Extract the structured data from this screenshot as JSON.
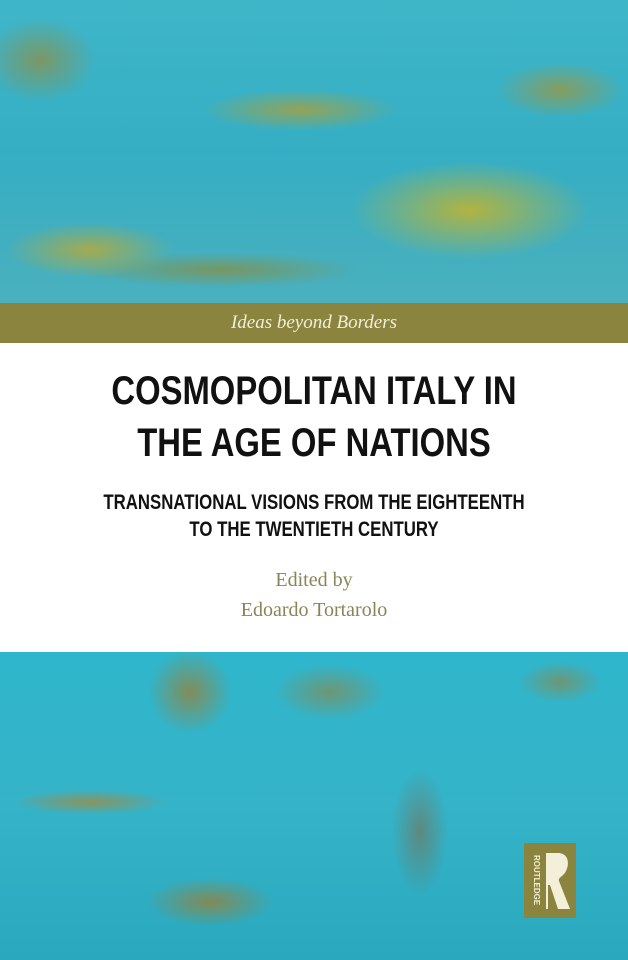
{
  "cover": {
    "series": "Ideas beyond Borders",
    "title_lines": [
      "COSMOPOLITAN ITALY IN",
      "THE AGE OF NATIONS"
    ],
    "subtitle_lines": [
      "TRANSNATIONAL VISIONS FROM THE EIGHTEENTH",
      "TO THE TWENTIETH CENTURY"
    ],
    "edited_by": "Edited by",
    "editor": "Edoardo Tortarolo",
    "publisher": "ROUTLEDGE"
  },
  "colors": {
    "band": "#8b843f",
    "art_teal": "#35aec4",
    "art_gold": "#b4aa3c"
  }
}
